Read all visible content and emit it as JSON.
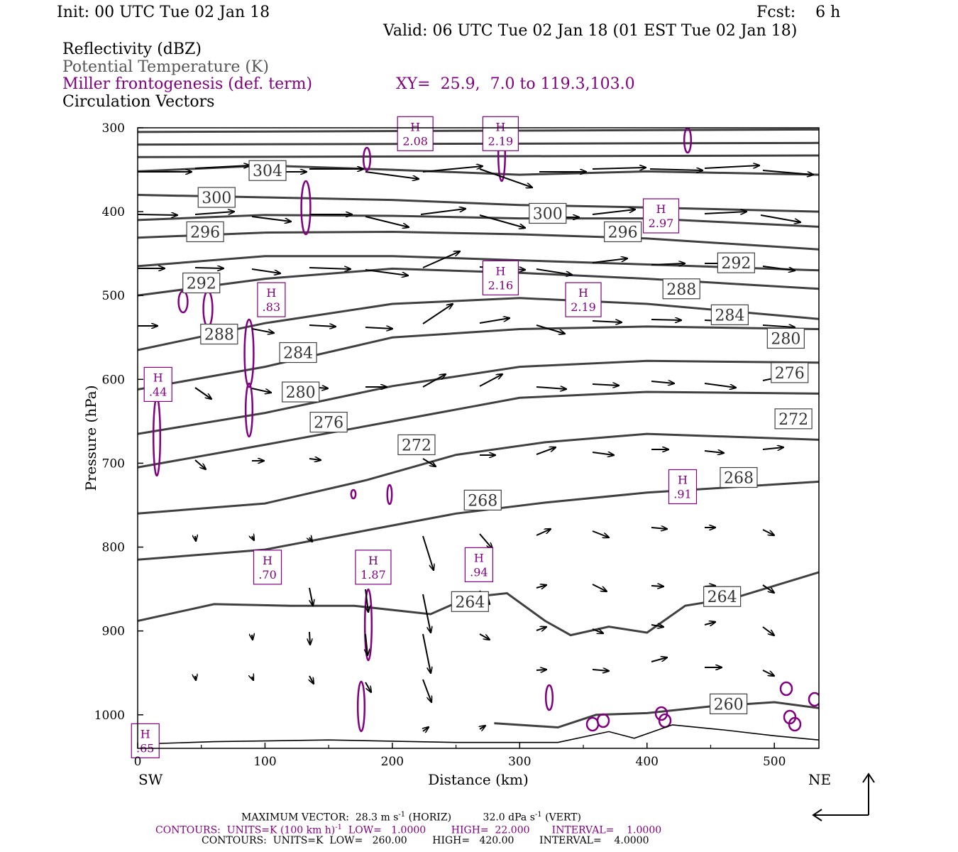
{
  "header": {
    "init": "Init: 00 UTC Tue 02 Jan 18",
    "fcst": "Fcst:    6 h",
    "valid": "Valid: 06 UTC Tue 02 Jan 18 (01 EST Tue 02 Jan 18)",
    "field1": "Reflectivity (dBZ)",
    "field2": "Potential Temperature (K)",
    "field3": "Miller frontogenesis (def. term)",
    "xy": "XY=  25.9,  7.0 to 119.3,103.0",
    "field4": "Circulation Vectors"
  },
  "chart_data": {
    "type": "contour",
    "ylabel": "Pressure (hPa)",
    "xlabel": "Distance (km)",
    "xlim": [
      0,
      535
    ],
    "ylim": [
      300,
      1040
    ],
    "y_inverted": true,
    "x_ticks": [
      "0",
      "100",
      "200",
      "300",
      "400",
      "500"
    ],
    "y_ticks": [
      "300",
      "400",
      "500",
      "600",
      "700",
      "800",
      "900",
      "1000"
    ],
    "left_end": "SW",
    "right_end": "NE",
    "theta_contours": [
      {
        "value": 304,
        "label": "304",
        "label_at": [
          102,
          351
        ]
      },
      {
        "value": 300,
        "label": "300",
        "label_at": [
          62,
          383
        ],
        "label2": "300",
        "label2_at": [
          322,
          402
        ]
      },
      {
        "value": 296,
        "label": "296",
        "label_at": [
          53,
          424
        ],
        "label2": "296",
        "label2_at": [
          381,
          424
        ]
      },
      {
        "value": 292,
        "label": "292",
        "label_at": [
          50,
          485
        ],
        "label2": "292",
        "label2_at": [
          470,
          461
        ]
      },
      {
        "value": 288,
        "label": "288",
        "label_at": [
          64,
          546
        ],
        "label2": "288",
        "label2_at": [
          427,
          492
        ]
      },
      {
        "value": 284,
        "label": "284",
        "label_at": [
          126,
          568
        ],
        "label2": "284",
        "label2_at": [
          465,
          523
        ]
      },
      {
        "value": 280,
        "label": "280",
        "label_at": [
          128,
          615
        ],
        "label2": "280",
        "label2_at": [
          509,
          551
        ]
      },
      {
        "value": 276,
        "label": "276",
        "label_at": [
          150,
          651
        ],
        "label2": "276",
        "label2_at": [
          512,
          592
        ]
      },
      {
        "value": 272,
        "label": "272",
        "label_at": [
          219,
          678
        ],
        "label2": "272",
        "label2_at": [
          515,
          647
        ]
      },
      {
        "value": 268,
        "label": "268",
        "label_at": [
          271,
          744
        ],
        "label2": "268",
        "label2_at": [
          472,
          717
        ]
      },
      {
        "value": 264,
        "label": "264",
        "label_at": [
          261,
          865
        ],
        "label2": "264",
        "label2_at": [
          459,
          859
        ]
      },
      {
        "value": 260,
        "label": "260",
        "label_at": [
          464,
          987
        ]
      }
    ],
    "frontogenesis_maxima": [
      {
        "label": "H",
        "value": "2.08",
        "at": [
          218,
          307
        ]
      },
      {
        "label": "H",
        "value": "2.19",
        "at": [
          285,
          307
        ]
      },
      {
        "label": "H",
        "value": "2.97",
        "at": [
          411,
          405
        ]
      },
      {
        "label": "H",
        "value": "2.16",
        "at": [
          285,
          479
        ]
      },
      {
        "label": "H",
        "value": "2.19",
        "at": [
          350,
          505
        ]
      },
      {
        "label": "H",
        "value": ".83",
        "at": [
          105,
          505
        ]
      },
      {
        "label": "H",
        "value": ".44",
        "at": [
          16,
          606
        ]
      },
      {
        "label": "H",
        "value": ".91",
        "at": [
          428,
          728
        ]
      },
      {
        "label": "H",
        "value": ".70",
        "at": [
          102,
          824
        ]
      },
      {
        "label": "H",
        "value": "1.87",
        "at": [
          185,
          824
        ]
      },
      {
        "label": "H",
        "value": ".94",
        "at": [
          268,
          821
        ]
      },
      {
        "label": "H",
        "value": ".65",
        "at": [
          6,
          1031
        ]
      }
    ],
    "vectors": {
      "max_vector_horiz": "28.3 m s",
      "max_vector_vert": "32.0 dPa s"
    }
  },
  "footer": {
    "maxvec_prefix": "MAXIMUM VECTOR:  28.3 m s",
    "maxvec_sup": "-1",
    "maxvec_mid": " (HORIZ)          32.0 dPa s",
    "maxvec_sup2": "-1",
    "maxvec_suffix": " (VERT)",
    "contours1_prefix": "CONTOURS:  UNITS=K (100 km h)",
    "contours1_sup": "-1",
    "contours1_suffix": "  LOW=   1.0000        HIGH=  22.000       INTERVAL=    1.0000",
    "contours2": "CONTOURS:  UNITS=K  LOW=   260.00        HIGH=   420.00        INTERVAL=    4.0000"
  },
  "colors": {
    "theta": "#404040",
    "frontogenesis": "#800080",
    "vectors": "#000000"
  }
}
